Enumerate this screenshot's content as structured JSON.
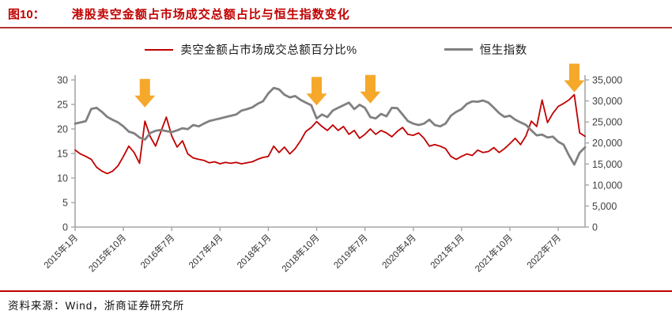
{
  "header": {
    "figure_label": "图10：",
    "title": "港股卖空金额占市场成交总额占比与恒生指数变化"
  },
  "legend": [
    {
      "label": "卖空金额占市场成交总额百分比%",
      "color": "#C00000",
      "thickness": 2
    },
    {
      "label": "恒生指数",
      "color": "#808080",
      "thickness": 3
    }
  ],
  "footer": {
    "source": "资料来源：Wind，浙商证券研究所"
  },
  "colors": {
    "title_red": "#C00000",
    "rule_red": "#B03434",
    "short_ratio_line": "#C00000",
    "hsi_line": "#808080",
    "arrow_orange": "#F5A82A",
    "axis_line": "#A6A6A6",
    "axis_text": "#404040"
  },
  "chart_data": {
    "type": "line",
    "title": "港股卖空金额占市场成交总额占比与恒生指数变化",
    "grid": false,
    "legend_position": "top",
    "x_start": "2015-01",
    "x_end": "2022-12",
    "x_frequency": "monthly",
    "x_tick_labels": [
      "2015年1月",
      "2015年10月",
      "2016年7月",
      "2017年4月",
      "2018年1月",
      "2018年10月",
      "2019年7月",
      "2020年4月",
      "2021年1月",
      "2021年10月",
      "2022年7月"
    ],
    "x_tick_month_indices": [
      0,
      9,
      18,
      27,
      36,
      45,
      54,
      63,
      72,
      81,
      90
    ],
    "left_axis": {
      "min": 0,
      "max": 30,
      "step": 5,
      "tick_labels": [
        "0",
        "5",
        "10",
        "15",
        "20",
        "25",
        "30"
      ]
    },
    "right_axis": {
      "min": 0,
      "max": 35000,
      "step": 5000,
      "tick_labels": [
        "0",
        "5,000",
        "10,000",
        "15,000",
        "20,000",
        "25,000",
        "30,000",
        "35,000"
      ]
    },
    "series": [
      {
        "name": "卖空金额占市场成交总额百分比%",
        "axis": "left",
        "color": "#C00000",
        "stroke_width": 1.8,
        "values": [
          15.7,
          14.9,
          14.4,
          13.8,
          12.2,
          11.4,
          10.9,
          11.4,
          12.5,
          14.4,
          16.5,
          15.2,
          13.0,
          21.6,
          18.4,
          16.5,
          19.5,
          22.4,
          18.6,
          16.3,
          17.6,
          14.9,
          14.1,
          13.8,
          13.6,
          13.1,
          13.3,
          12.9,
          13.2,
          13.0,
          13.2,
          12.9,
          13.1,
          13.3,
          13.8,
          14.2,
          14.4,
          16.5,
          15.2,
          16.3,
          14.9,
          16.0,
          17.6,
          19.5,
          20.3,
          21.5,
          20.5,
          19.7,
          20.8,
          19.7,
          20.5,
          18.9,
          19.7,
          18.1,
          18.9,
          20.0,
          18.9,
          19.7,
          19.2,
          18.4,
          19.5,
          20.3,
          18.9,
          18.7,
          19.2,
          18.1,
          16.5,
          16.8,
          16.5,
          16.0,
          14.4,
          13.8,
          14.4,
          14.9,
          14.6,
          15.7,
          15.2,
          15.4,
          16.2,
          15.2,
          16.0,
          17.0,
          18.1,
          16.8,
          18.6,
          21.6,
          20.5,
          25.9,
          21.3,
          23.2,
          24.6,
          25.2,
          25.9,
          27.0,
          19.2,
          18.5
        ]
      },
      {
        "name": "恒生指数",
        "axis": "right",
        "color": "#808080",
        "stroke_width": 2.8,
        "values": [
          24600,
          24900,
          25200,
          28100,
          28350,
          27400,
          26200,
          25500,
          24900,
          23960,
          22700,
          22300,
          21300,
          20800,
          22400,
          22900,
          23100,
          22800,
          22600,
          23000,
          23500,
          23300,
          24270,
          23960,
          24590,
          25215,
          25530,
          25840,
          26150,
          26450,
          26780,
          27700,
          28030,
          28470,
          29300,
          29910,
          31800,
          33100,
          32740,
          31480,
          30850,
          31170,
          30230,
          29600,
          28970,
          25840,
          26780,
          26150,
          27720,
          28350,
          28970,
          29600,
          28050,
          29100,
          28350,
          26150,
          25840,
          26900,
          26350,
          28350,
          28300,
          26780,
          25215,
          24590,
          24270,
          24590,
          25530,
          24270,
          23960,
          24590,
          26470,
          27400,
          28030,
          29300,
          29900,
          29800,
          30100,
          29600,
          28400,
          27100,
          26200,
          26470,
          25530,
          24900,
          24300,
          23000,
          21800,
          22000,
          21300,
          21500,
          20300,
          19600,
          17060,
          14870,
          17690,
          18940
        ]
      }
    ],
    "annotations": {
      "arrows_note": "orange down-arrows marking short-selling spikes / market troughs",
      "color": "#F5A82A",
      "arrows": [
        {
          "month": "2016-02",
          "month_index": 13,
          "tip_value_left_axis": 24.4
        },
        {
          "month": "2018-10",
          "month_index": 45,
          "tip_value_left_axis": 24.8
        },
        {
          "month": "2019-08",
          "month_index": 55,
          "tip_value_left_axis": 25.2
        },
        {
          "month": "2022-10",
          "month_index": 93,
          "tip_value_left_axis": 27.5
        }
      ]
    }
  }
}
